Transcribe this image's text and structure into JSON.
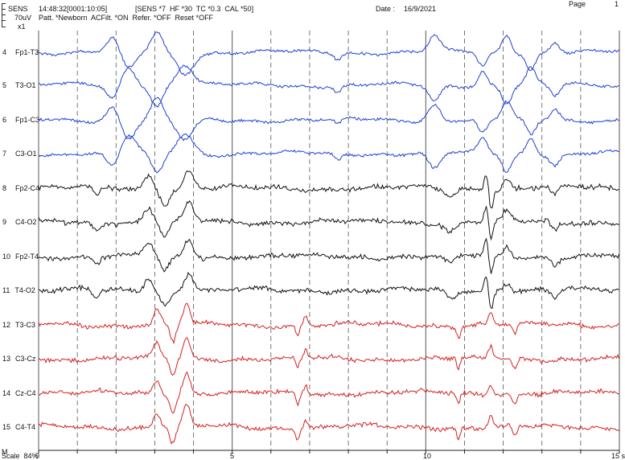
{
  "header": {
    "sens_label": "SENS",
    "timestamp": "14:48:32[0001:10:05]",
    "settings": "[SENS *7  HF *30  TC *0.3  CAL *50]",
    "date_label": "Date :",
    "date_value": "16/9/2021",
    "page_label": "Page",
    "page_number": "1",
    "amplitude": "70uV",
    "pattern": "Patt. *Newborn  ACFilt. *ON  Refer. *OFF  Reset *OFF",
    "gain": "x1"
  },
  "footer": {
    "marker": "M",
    "scale_text": "Scale  84%",
    "axis_labels": [
      "0",
      "5",
      "10",
      "15 s"
    ]
  },
  "colors": {
    "blue": "#1f3fd0",
    "black": "#111111",
    "red": "#d42020",
    "grid": "#555555"
  },
  "channels": [
    {
      "index": "4",
      "name": "Fp1-T3",
      "color": "blue"
    },
    {
      "index": "5",
      "name": "T3-O1",
      "color": "blue"
    },
    {
      "index": "6",
      "name": "Fp1-C3",
      "color": "blue"
    },
    {
      "index": "7",
      "name": "C3-O1",
      "color": "blue"
    },
    {
      "index": "8",
      "name": "Fp2-C4",
      "color": "black"
    },
    {
      "index": "9",
      "name": "C4-O2",
      "color": "black"
    },
    {
      "index": "10",
      "name": "Fp2-T4",
      "color": "black"
    },
    {
      "index": "11",
      "name": "T4-O2",
      "color": "black"
    },
    {
      "index": "12",
      "name": "T3-C3",
      "color": "red"
    },
    {
      "index": "13",
      "name": "C3-Cz",
      "color": "red"
    },
    {
      "index": "14",
      "name": "Cz-C4",
      "color": "red"
    },
    {
      "index": "15",
      "name": "C4-T4",
      "color": "red"
    }
  ]
}
